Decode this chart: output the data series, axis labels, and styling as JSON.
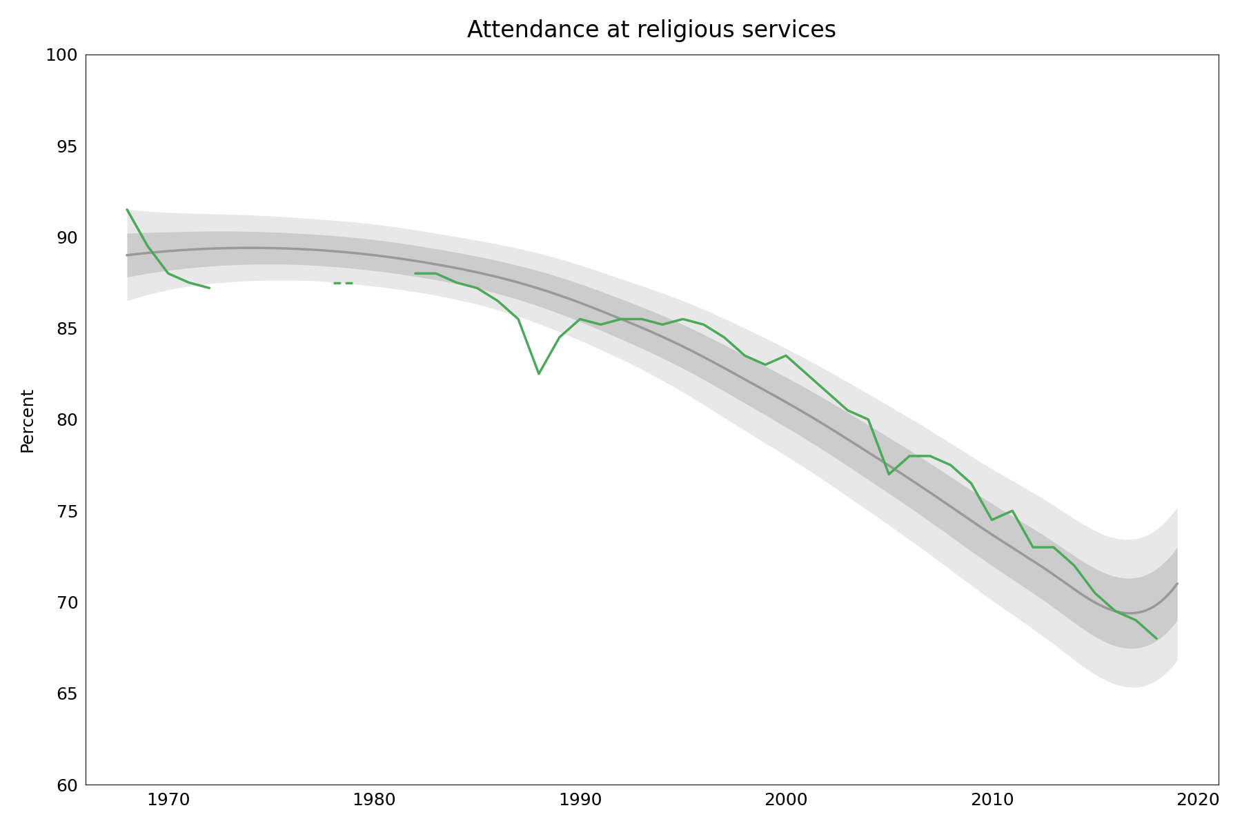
{
  "title": "Attendance at religious services",
  "ylabel": "Percent",
  "xlim": [
    1966,
    2021
  ],
  "ylim": [
    60,
    100
  ],
  "yticks": [
    60,
    65,
    70,
    75,
    80,
    85,
    90,
    95,
    100
  ],
  "xticks": [
    1970,
    1980,
    1990,
    2000,
    2010,
    2020
  ],
  "background_color": "#ffffff",
  "green_color": "#4aaa5a",
  "trend_color": "#999999",
  "ci_inner_color": "#cccccc",
  "ci_outer_color": "#e8e8e8",
  "green_lw": 2.5,
  "trend_lw": 2.5,
  "green_seg1_years": [
    1968,
    1969,
    1970,
    1971,
    1972
  ],
  "green_seg1_vals": [
    91.5,
    89.5,
    88.0,
    87.5,
    87.2
  ],
  "green_seg2_years": [
    1978,
    1979
  ],
  "green_seg2_vals": [
    87.5,
    87.5
  ],
  "green_seg3_years": [
    1982,
    1983,
    1984,
    1985,
    1986,
    1987,
    1988,
    1989,
    1990,
    1991,
    1992,
    1993,
    1994,
    1995,
    1996,
    1997,
    1998,
    1999,
    2000,
    2001,
    2002,
    2003,
    2004,
    2005,
    2006,
    2007,
    2008,
    2009,
    2010,
    2011,
    2012,
    2013,
    2014,
    2015,
    2016,
    2017,
    2018
  ],
  "green_seg3_vals": [
    88.0,
    88.0,
    87.5,
    87.2,
    86.5,
    85.5,
    82.5,
    84.5,
    85.5,
    85.2,
    85.5,
    85.5,
    85.2,
    85.5,
    85.2,
    84.5,
    83.5,
    83.0,
    83.5,
    82.5,
    81.5,
    80.5,
    80.0,
    77.0,
    78.0,
    78.0,
    77.5,
    76.5,
    74.5,
    75.0,
    73.0,
    73.0,
    72.0,
    70.5,
    69.5,
    69.0,
    68.0
  ],
  "trend_knots_x": [
    1968,
    1971,
    1974,
    1977,
    1980,
    1983,
    1986,
    1989,
    1992,
    1995,
    1998,
    2001,
    2004,
    2007,
    2010,
    2013,
    2016,
    2019
  ],
  "trend_knots_y": [
    89.0,
    89.3,
    89.4,
    89.3,
    89.0,
    88.5,
    87.8,
    86.8,
    85.5,
    84.0,
    82.2,
    80.3,
    78.2,
    76.0,
    73.7,
    71.5,
    69.5,
    71.0
  ],
  "ci_inner_half_width": [
    1.2,
    1.0,
    0.9,
    0.85,
    0.85,
    0.85,
    0.9,
    1.0,
    1.1,
    1.2,
    1.3,
    1.4,
    1.5,
    1.6,
    1.7,
    1.8,
    1.9,
    2.0
  ],
  "ci_outer_half_width": [
    2.5,
    2.0,
    1.8,
    1.7,
    1.7,
    1.7,
    1.8,
    2.0,
    2.2,
    2.5,
    2.8,
    3.0,
    3.2,
    3.4,
    3.6,
    3.8,
    4.0,
    4.2
  ]
}
